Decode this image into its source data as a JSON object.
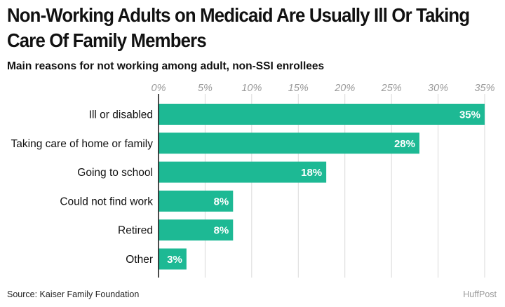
{
  "header": {
    "title_line1": "Non-Working Adults on Medicaid Are Usually Ill Or Taking",
    "title_line2": "Care Of Family Members",
    "subtitle": "Main reasons for not working among adult, non-SSI enrollees"
  },
  "footer": {
    "source": "Source: Kaiser Family Foundation",
    "brand": "HuffPost"
  },
  "chart_data": {
    "type": "bar",
    "orientation": "horizontal",
    "categories": [
      "Ill or disabled",
      "Taking care of home or family",
      "Going to school",
      "Could not find work",
      "Retired",
      "Other"
    ],
    "values": [
      35,
      28,
      18,
      8,
      8,
      3
    ],
    "value_labels": [
      "35%",
      "28%",
      "18%",
      "8%",
      "8%",
      "3%"
    ],
    "x_ticks": [
      0,
      5,
      10,
      15,
      20,
      25,
      30,
      35
    ],
    "x_tick_labels": [
      "0%",
      "5%",
      "10%",
      "15%",
      "20%",
      "25%",
      "30%",
      "35%"
    ],
    "xlim": [
      0,
      35
    ],
    "grid": true,
    "bar_color": "#1db994",
    "grid_color": "#d9d9d9"
  }
}
